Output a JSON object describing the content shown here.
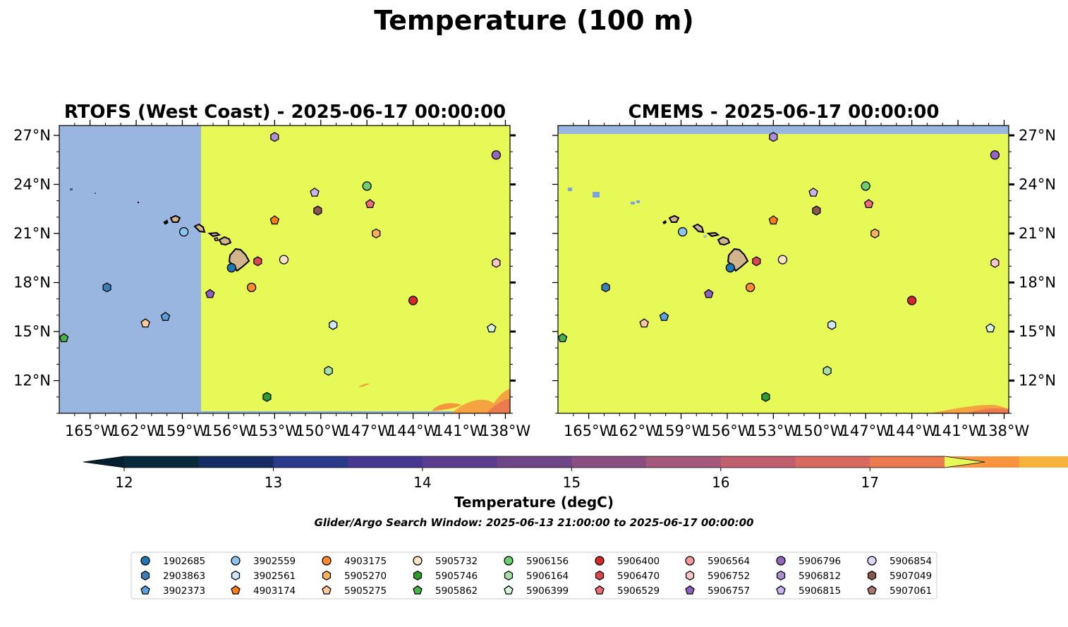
{
  "figure": {
    "title": "Temperature (100 m)",
    "caption": "Glider/Argo Search Window: 2025-06-13 21:00:00 to 2025-06-17 00:00:00"
  },
  "colors": {
    "ocean_warm": "#e6f957",
    "nodata": "#99b6e1",
    "land": "#d2b48c",
    "warm_edge": "#f07e4a"
  },
  "maps": [
    {
      "title": "RTOFS (West Coast) - 2025-06-17 00:00:00",
      "tick_labels_side": "left"
    },
    {
      "title": "CMEMS - 2025-06-17 00:00:00",
      "tick_labels_side": "right"
    }
  ],
  "axes": {
    "lon_range": [
      -167,
      -137.7
    ],
    "lat_range": [
      10,
      27.6
    ],
    "lon_ticks": [
      "165°W",
      "162°W",
      "159°W",
      "156°W",
      "153°W",
      "150°W",
      "147°W",
      "144°W",
      "141°W",
      "138°W"
    ],
    "lon_values": [
      -165,
      -162,
      -159,
      -156,
      -153,
      -150,
      -147,
      -144,
      -141,
      -138
    ],
    "lat_ticks": [
      "12°N",
      "15°N",
      "18°N",
      "21°N",
      "24°N",
      "27°N"
    ],
    "lat_values": [
      12,
      15,
      18,
      21,
      24,
      27
    ]
  },
  "colorbar": {
    "label": "Temperature (degC)",
    "ticks": [
      "12",
      "13",
      "14",
      "15",
      "16",
      "17"
    ],
    "tick_values": [
      12,
      13,
      14,
      15,
      16,
      17
    ],
    "range": [
      12,
      17.5
    ],
    "step": 0.5,
    "extend": "both",
    "bins": [
      "#062a3c",
      "#162d63",
      "#2a3b8c",
      "#463891",
      "#5a3d8e",
      "#6e4587",
      "#8a4f80",
      "#a5597a",
      "#c0606f",
      "#d76a60",
      "#ec7a4f",
      "#f7943d",
      "#f8b43a",
      "#f4cf45"
    ],
    "under_color": "#04202e",
    "over_color": "#e6f957"
  },
  "legend": {
    "columns": [
      [
        {
          "id": "1902685",
          "color": "#1f77b4",
          "marker": "circle"
        },
        {
          "id": "2903863",
          "color": "#3b7fba",
          "marker": "hexagon"
        },
        {
          "id": "3902373",
          "color": "#5aa0dc",
          "marker": "pentagon"
        }
      ],
      [
        {
          "id": "3902559",
          "color": "#8cc5f0",
          "marker": "circle"
        },
        {
          "id": "3902561",
          "color": "#cde8fb",
          "marker": "hexagon"
        },
        {
          "id": "4903174",
          "color": "#ff7f0e",
          "marker": "pentagon"
        }
      ],
      [
        {
          "id": "4903175",
          "color": "#fd8c2c",
          "marker": "circle"
        },
        {
          "id": "5905270",
          "color": "#fcb05e",
          "marker": "hexagon"
        },
        {
          "id": "5905275",
          "color": "#fdc89a",
          "marker": "pentagon"
        }
      ],
      [
        {
          "id": "5905732",
          "color": "#fde3c8",
          "marker": "circle"
        },
        {
          "id": "5905746",
          "color": "#2ca02c",
          "marker": "hexagon"
        },
        {
          "id": "5905862",
          "color": "#46b446",
          "marker": "pentagon"
        }
      ],
      [
        {
          "id": "5906156",
          "color": "#6cce6c",
          "marker": "circle"
        },
        {
          "id": "5906164",
          "color": "#a3e2a3",
          "marker": "hexagon"
        },
        {
          "id": "5906399",
          "color": "#d5f5d5",
          "marker": "pentagon"
        }
      ],
      [
        {
          "id": "5906400",
          "color": "#d62728",
          "marker": "circle"
        },
        {
          "id": "5906470",
          "color": "#e0474a",
          "marker": "hexagon"
        },
        {
          "id": "5906529",
          "color": "#ec6c72",
          "marker": "pentagon"
        }
      ],
      [
        {
          "id": "5906564",
          "color": "#f39a9c",
          "marker": "circle"
        },
        {
          "id": "5906752",
          "color": "#f9c6c8",
          "marker": "hexagon"
        },
        {
          "id": "5906757",
          "color": "#8f5fc2",
          "marker": "pentagon"
        }
      ],
      [
        {
          "id": "5906796",
          "color": "#9467bd",
          "marker": "circle"
        },
        {
          "id": "5906812",
          "color": "#b18fd6",
          "marker": "hexagon"
        },
        {
          "id": "5906815",
          "color": "#cbb3ee",
          "marker": "pentagon"
        }
      ],
      [
        {
          "id": "5906854",
          "color": "#e3d5f8",
          "marker": "circle"
        },
        {
          "id": "5907049",
          "color": "#8c564b",
          "marker": "hexagon"
        },
        {
          "id": "5907061",
          "color": "#a9776b",
          "marker": "pentagon"
        }
      ]
    ]
  },
  "floats": [
    {
      "id": "1902685",
      "lon": -155.8,
      "lat": 18.9
    },
    {
      "id": "2903863",
      "lon": -163.9,
      "lat": 17.7
    },
    {
      "id": "3902373",
      "lon": -160.1,
      "lat": 15.9
    },
    {
      "id": "3902559",
      "lon": -158.9,
      "lat": 21.1
    },
    {
      "id": "3902561",
      "lon": -149.2,
      "lat": 15.4
    },
    {
      "id": "4903174",
      "lon": -153.0,
      "lat": 21.8
    },
    {
      "id": "4903175",
      "lon": -154.5,
      "lat": 17.7
    },
    {
      "id": "5905270",
      "lon": -146.4,
      "lat": 21.0
    },
    {
      "id": "5905275",
      "lon": -161.4,
      "lat": 15.5
    },
    {
      "id": "5905732",
      "lon": -152.4,
      "lat": 19.4
    },
    {
      "id": "5905746",
      "lon": -153.5,
      "lat": 11.0
    },
    {
      "id": "5905862",
      "lon": -166.7,
      "lat": 14.6
    },
    {
      "id": "5906156",
      "lon": -147.0,
      "lat": 23.9
    },
    {
      "id": "5906164",
      "lon": -149.5,
      "lat": 12.6
    },
    {
      "id": "5906399",
      "lon": -138.9,
      "lat": 15.2
    },
    {
      "id": "5906400",
      "lon": -144.0,
      "lat": 16.9
    },
    {
      "id": "5906470",
      "lon": -154.1,
      "lat": 19.3
    },
    {
      "id": "5906529",
      "lon": -146.8,
      "lat": 22.8
    },
    {
      "id": "5906752",
      "lon": -138.6,
      "lat": 19.2
    },
    {
      "id": "5906757",
      "lon": -157.2,
      "lat": 17.3
    },
    {
      "id": "5906796",
      "lon": -138.6,
      "lat": 25.8
    },
    {
      "id": "5906815",
      "lon": -150.4,
      "lat": 23.5
    },
    {
      "id": "5906812",
      "lon": -153.0,
      "lat": 26.9
    },
    {
      "id": "5907049",
      "lon": -150.2,
      "lat": 22.4
    }
  ]
}
